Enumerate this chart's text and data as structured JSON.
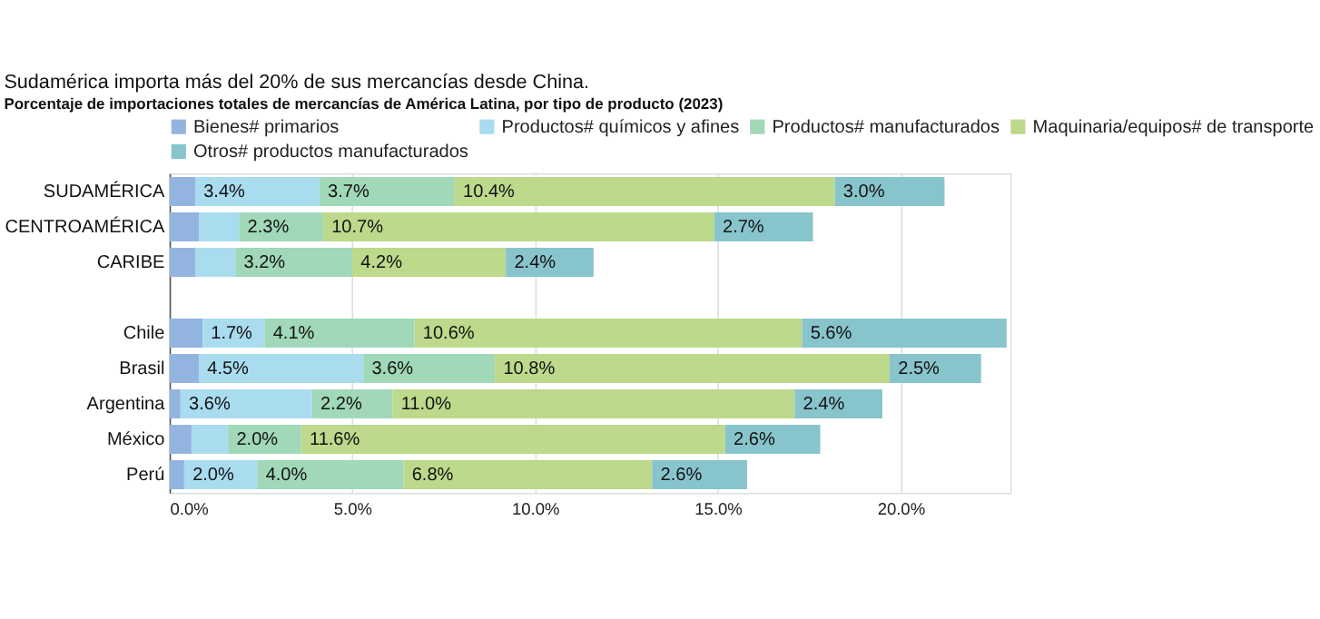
{
  "chart_data": {
    "type": "bar",
    "orientation": "horizontal",
    "stacked": true,
    "title": "Sudamérica importa más del 20% de sus mercancías desde China.",
    "subtitle": "Porcentaje de importaciones totales de mercancías de América Latina, por tipo de producto (2023)",
    "categories": [
      "SUDAMÉRICA",
      "CENTROAMÉRICA",
      "CARIBE",
      null,
      "Chile",
      "Brasil",
      "Argentina",
      "México",
      "Perú"
    ],
    "series": [
      {
        "name": "Bienes# primarios",
        "color": "#94b4e0",
        "values": [
          0.7,
          0.8,
          0.7,
          null,
          0.9,
          0.8,
          0.3,
          0.6,
          0.4
        ],
        "value_labels": [
          null,
          null,
          null,
          null,
          null,
          null,
          null,
          null,
          null
        ]
      },
      {
        "name": "Productos# químicos y afines",
        "color": "#aadcf0",
        "values": [
          3.4,
          1.1,
          1.1,
          null,
          1.7,
          4.5,
          3.6,
          1.0,
          2.0
        ],
        "value_labels": [
          "3.4%",
          null,
          null,
          null,
          "1.7%",
          "4.5%",
          "3.6%",
          null,
          "2.0%"
        ]
      },
      {
        "name": "Productos# manufacturados",
        "color": "#a0d8b8",
        "values": [
          3.7,
          2.3,
          3.2,
          null,
          4.1,
          3.6,
          2.2,
          2.0,
          4.0
        ],
        "value_labels": [
          "3.7%",
          "2.3%",
          "3.2%",
          null,
          "4.1%",
          "3.6%",
          "2.2%",
          "2.0%",
          "4.0%"
        ]
      },
      {
        "name": "Maquinaria/equipos# de transporte",
        "color": "#bcd98c",
        "values": [
          10.4,
          10.7,
          4.2,
          null,
          10.6,
          10.8,
          11.0,
          11.6,
          6.8
        ],
        "value_labels": [
          "10.4%",
          "10.7%",
          "4.2%",
          null,
          "10.6%",
          "10.8%",
          "11.0%",
          "11.6%",
          "6.8%"
        ]
      },
      {
        "name": "Otros# productos manufacturados",
        "color": "#88c4cc",
        "values": [
          3.0,
          2.7,
          2.4,
          null,
          5.6,
          2.5,
          2.4,
          2.6,
          2.6
        ],
        "value_labels": [
          "3.0%",
          "2.7%",
          "2.4%",
          null,
          "5.6%",
          "2.5%",
          "2.4%",
          "2.6%",
          "2.6%"
        ]
      }
    ],
    "xlim": [
      0,
      23
    ],
    "xticks": [
      {
        "value": 0,
        "label": "0.0%"
      },
      {
        "value": 5,
        "label": "5.0%"
      },
      {
        "value": 10,
        "label": "10.0%"
      },
      {
        "value": 15,
        "label": "15.0%"
      },
      {
        "value": 20,
        "label": "20.0%"
      }
    ],
    "grid": "x",
    "legend": "top"
  }
}
